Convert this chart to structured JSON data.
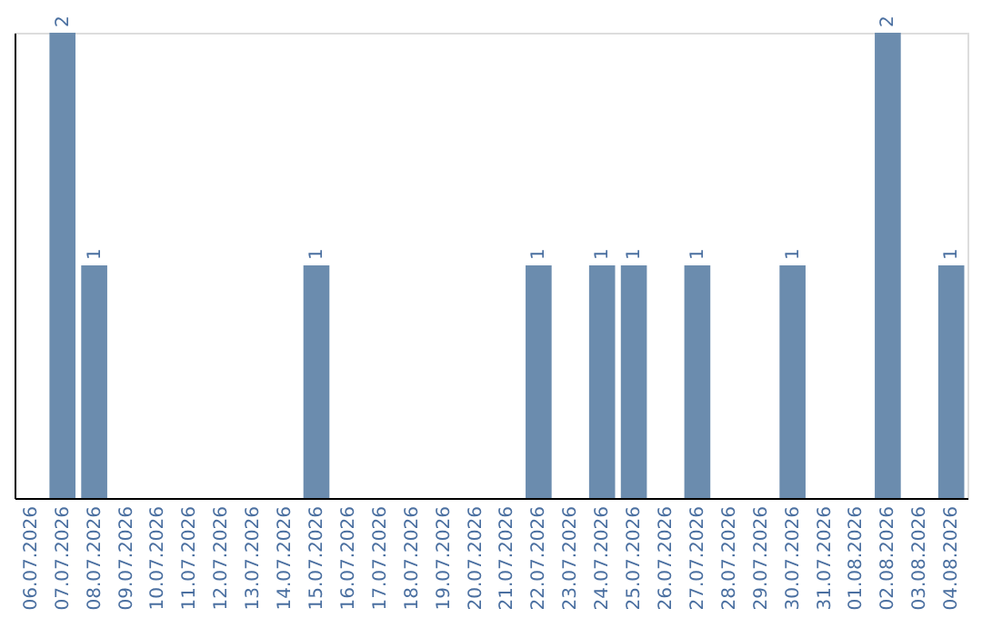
{
  "chart_data": {
    "type": "bar",
    "categories": [
      "06.07.2026",
      "07.07.2026",
      "08.07.2026",
      "09.07.2026",
      "10.07.2026",
      "11.07.2026",
      "12.07.2026",
      "13.07.2026",
      "14.07.2026",
      "15.07.2026",
      "16.07.2026",
      "17.07.2026",
      "18.07.2026",
      "19.07.2026",
      "20.07.2026",
      "21.07.2026",
      "22.07.2026",
      "23.07.2026",
      "24.07.2026",
      "25.07.2026",
      "26.07.2026",
      "27.07.2026",
      "28.07.2026",
      "29.07.2026",
      "30.07.2026",
      "31.07.2026",
      "01.08.2026",
      "02.08.2026",
      "03.08.2026",
      "04.08.2026"
    ],
    "values": [
      null,
      2,
      1,
      null,
      null,
      null,
      null,
      null,
      null,
      1,
      null,
      null,
      null,
      null,
      null,
      null,
      1,
      null,
      1,
      1,
      null,
      1,
      null,
      null,
      1,
      null,
      null,
      2,
      null,
      1
    ],
    "color": "#6b8cae",
    "ylim": [
      0,
      2
    ],
    "data_labels": true,
    "tick_labels": "x"
  }
}
